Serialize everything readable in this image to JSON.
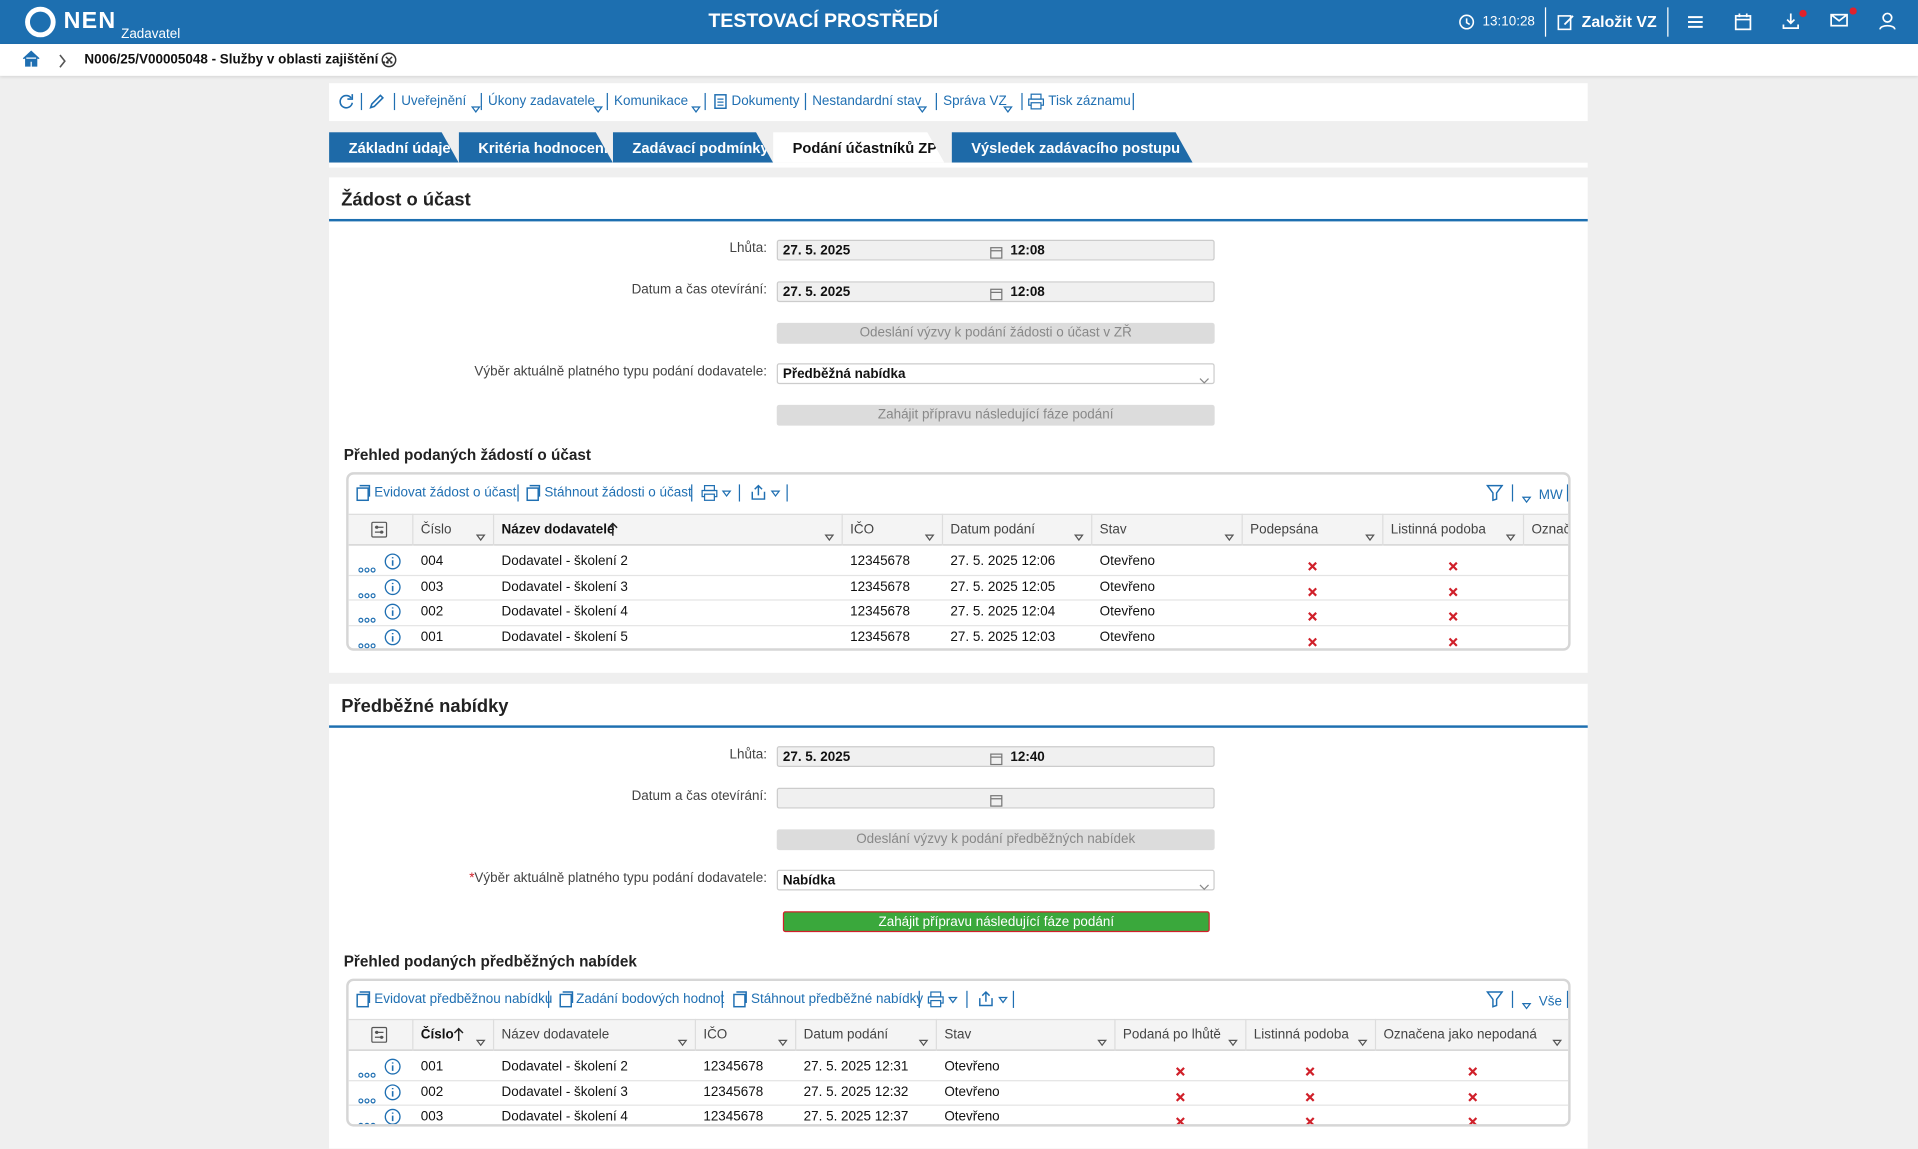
{
  "header": {
    "logo": "NEN",
    "role": "Zadavatel",
    "environment": "TESTOVACÍ PROSTŘEDÍ",
    "time": "13:10:28",
    "create": "Založit VZ"
  },
  "breadcrumb": "N006/25/V00005048 - Služby v oblasti zajištění ...",
  "toolbar": [
    "Uveřejnění",
    "Úkony zadavatele",
    "Komunikace",
    "Dokumenty",
    "Nestandardní stav",
    "Správa VZ",
    "Tisk záznamu"
  ],
  "tabs": [
    "Základní údaje",
    "Kritéria hodnocení",
    "Zadávací podmínky",
    "Podání účastníků ZP",
    "Výsledek zadávacího postupu"
  ],
  "sections": [
    {
      "title": "Žádost o účast",
      "deadline": {
        "label": "Lhůta:",
        "date": "27. 5. 2025",
        "time": "12:08"
      },
      "opening": {
        "label": "Datum a čas otevírání:",
        "date": "27. 5. 2025",
        "time": "12:08"
      },
      "send_button": "Odeslání výzvy k podání žádosti o účast v ZŘ",
      "type_select": {
        "label": "Výběr aktuálně platného typu podání dodavatele:",
        "value": "Předběžná nabídka"
      },
      "next_button": "Zahájit přípravu následující fáze podání",
      "table": {
        "title": "Přehled podaných žádostí o účast",
        "actions": [
          "Evidovat žádost o účast",
          "Stáhnout žádosti o účast"
        ],
        "view": "MW",
        "columns": [
          "Číslo",
          "Název dodavatele",
          "IČO",
          "Datum podání",
          "Stav",
          "Podepsána",
          "Listinná podoba",
          "Označ"
        ],
        "rows": [
          [
            "004",
            "Dodavatel - školení 2",
            "12345678",
            "27. 5. 2025 12:06",
            "Otevřeno"
          ],
          [
            "003",
            "Dodavatel - školení 3",
            "12345678",
            "27. 5. 2025 12:05",
            "Otevřeno"
          ],
          [
            "002",
            "Dodavatel - školení 4",
            "12345678",
            "27. 5. 2025 12:04",
            "Otevřeno"
          ],
          [
            "001",
            "Dodavatel - školení 5",
            "12345678",
            "27. 5. 2025 12:03",
            "Otevřeno"
          ]
        ]
      }
    },
    {
      "title": "Předběžné nabídky",
      "deadline": {
        "label": "Lhůta:",
        "date": "27. 5. 2025",
        "time": "12:40"
      },
      "opening": {
        "label": "Datum a čas otevírání:"
      },
      "send_button": "Odeslání výzvy k podání předběžných nabídek",
      "type_select": {
        "required": "*",
        "label": "Výběr aktuálně platného typu podání dodavatele:",
        "value": "Nabídka"
      },
      "next_button": "Zahájit přípravu následující fáze podání",
      "table": {
        "title": "Přehled podaných předběžných nabídek",
        "actions": [
          "Evidovat předběžnou nabídku",
          "Zadání bodových hodnot",
          "Stáhnout předběžné nabídky"
        ],
        "view": "Vše",
        "columns": [
          "Číslo",
          "Název dodavatele",
          "IČO",
          "Datum podání",
          "Stav",
          "Podaná po lhůtě",
          "Listinná podoba",
          "Označena jako nepodaná"
        ],
        "rows": [
          [
            "001",
            "Dodavatel - školení 2",
            "12345678",
            "27. 5. 2025 12:31",
            "Otevřeno"
          ],
          [
            "002",
            "Dodavatel - školení 3",
            "12345678",
            "27. 5. 2025 12:32",
            "Otevřeno"
          ],
          [
            "003",
            "Dodavatel - školení 4",
            "12345678",
            "27. 5. 2025 12:37",
            "Otevřeno"
          ]
        ]
      }
    }
  ]
}
